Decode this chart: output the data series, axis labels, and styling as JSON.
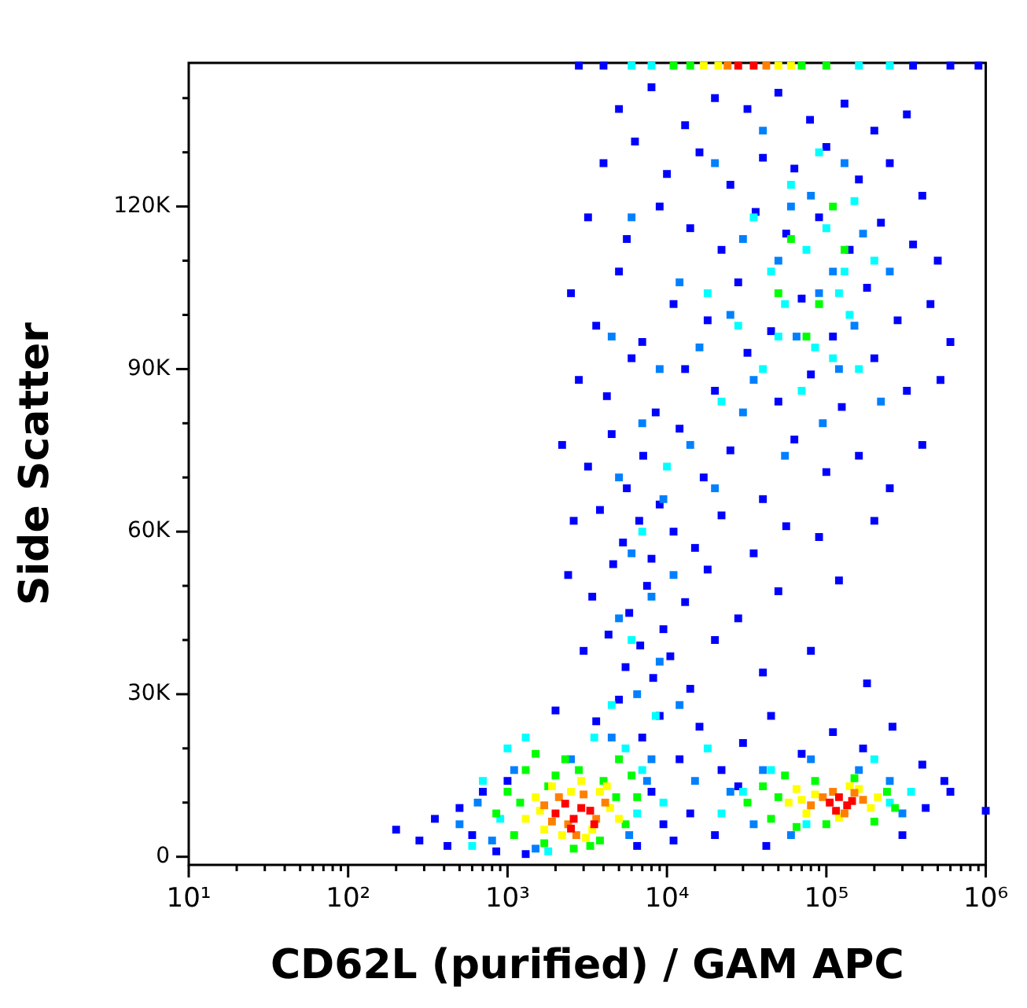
{
  "chart_data": {
    "type": "scatter",
    "xlabel": "CD62L (purified) / GAM APC",
    "ylabel": "Side Scatter",
    "log": "x",
    "grid": false,
    "legend": false,
    "marker": "square",
    "xlim": [
      10,
      1000000
    ],
    "ylim": [
      -1500,
      146500
    ],
    "xticks": [
      {
        "value": 10,
        "label": "10¹"
      },
      {
        "value": 20,
        "label": null
      },
      {
        "value": 30,
        "label": null
      },
      {
        "value": 40,
        "label": null
      },
      {
        "value": 50,
        "label": null
      },
      {
        "value": 60,
        "label": null
      },
      {
        "value": 70,
        "label": null
      },
      {
        "value": 80,
        "label": null
      },
      {
        "value": 90,
        "label": null
      },
      {
        "value": 100,
        "label": "10²"
      },
      {
        "value": 200,
        "label": null
      },
      {
        "value": 300,
        "label": null
      },
      {
        "value": 400,
        "label": null
      },
      {
        "value": 500,
        "label": null
      },
      {
        "value": 600,
        "label": null
      },
      {
        "value": 700,
        "label": null
      },
      {
        "value": 800,
        "label": null
      },
      {
        "value": 900,
        "label": null
      },
      {
        "value": 1000,
        "label": "10³"
      },
      {
        "value": 2000,
        "label": null
      },
      {
        "value": 3000,
        "label": null
      },
      {
        "value": 4000,
        "label": null
      },
      {
        "value": 5000,
        "label": null
      },
      {
        "value": 6000,
        "label": null
      },
      {
        "value": 7000,
        "label": null
      },
      {
        "value": 8000,
        "label": null
      },
      {
        "value": 9000,
        "label": null
      },
      {
        "value": 10000,
        "label": "10⁴"
      },
      {
        "value": 20000,
        "label": null
      },
      {
        "value": 30000,
        "label": null
      },
      {
        "value": 40000,
        "label": null
      },
      {
        "value": 50000,
        "label": null
      },
      {
        "value": 60000,
        "label": null
      },
      {
        "value": 70000,
        "label": null
      },
      {
        "value": 80000,
        "label": null
      },
      {
        "value": 90000,
        "label": null
      },
      {
        "value": 100000,
        "label": "10⁵"
      },
      {
        "value": 200000,
        "label": null
      },
      {
        "value": 300000,
        "label": null
      },
      {
        "value": 400000,
        "label": null
      },
      {
        "value": 500000,
        "label": null
      },
      {
        "value": 600000,
        "label": null
      },
      {
        "value": 700000,
        "label": null
      },
      {
        "value": 800000,
        "label": null
      },
      {
        "value": 900000,
        "label": null
      },
      {
        "value": 1000000,
        "label": "10⁶"
      }
    ],
    "yticks": [
      0,
      {
        "value": 10000,
        "label": null
      },
      {
        "value": 20000,
        "label": null
      },
      {
        "value": 30000,
        "label": "30K"
      },
      {
        "value": 40000,
        "label": null
      },
      {
        "value": 50000,
        "label": null
      },
      {
        "value": 60000,
        "label": "60K"
      },
      {
        "value": 70000,
        "label": null
      },
      {
        "value": 80000,
        "label": null
      },
      {
        "value": 90000,
        "label": "90K"
      },
      {
        "value": 100000,
        "label": null
      },
      {
        "value": 110000,
        "label": null
      },
      {
        "value": 120000,
        "label": "120K"
      },
      {
        "value": 130000,
        "label": null
      },
      {
        "value": 140000,
        "label": null
      }
    ],
    "series": [
      {
        "color": "#0000ff",
        "x": [
          5000,
          8000,
          13000,
          20000,
          32000,
          50000,
          79000,
          130000,
          200000,
          320000,
          4000,
          6300,
          10000,
          16000,
          25000,
          40000,
          63000,
          100000,
          160000,
          250000,
          400000,
          3200,
          5600,
          9000,
          14000,
          22000,
          36000,
          56000,
          90000,
          140000,
          220000,
          350000,
          500000,
          2500,
          3600,
          5000,
          7000,
          11000,
          18000,
          28000,
          45000,
          70000,
          110000,
          180000,
          280000,
          450000,
          600000,
          2800,
          4200,
          6000,
          8500,
          13000,
          20000,
          32000,
          50000,
          80000,
          125000,
          200000,
          320000,
          520000,
          2200,
          3200,
          4500,
          5600,
          7100,
          9000,
          12000,
          17000,
          25000,
          40000,
          63000,
          100000,
          160000,
          250000,
          400000,
          2600,
          3800,
          5300,
          6700,
          8000,
          11000,
          15000,
          22000,
          35000,
          56000,
          90000,
          200000,
          2400,
          3400,
          4600,
          5800,
          7500,
          9500,
          13000,
          18000,
          28000,
          50000,
          120000,
          3000,
          4300,
          5500,
          6800,
          8200,
          10500,
          14000,
          20000,
          40000,
          80000,
          180000,
          2000,
          3600,
          5000,
          7000,
          9000,
          12000,
          16000,
          22000,
          30000,
          45000,
          70000,
          110000,
          170000,
          260000,
          400000,
          550000,
          200,
          280,
          350,
          420,
          500,
          600,
          700,
          850,
          1000,
          1300,
          6500,
          8000,
          9500,
          11000,
          14000,
          20000,
          28000,
          42000,
          300000,
          420000,
          600000,
          1000000,
          2800,
          4000,
          350000,
          600000,
          900000
        ],
        "values": [
          138000,
          142000,
          135000,
          140000,
          138000,
          141000,
          136000,
          139000,
          134000,
          137000,
          128000,
          132000,
          126000,
          130000,
          124000,
          129000,
          127000,
          131000,
          125000,
          128000,
          122000,
          118000,
          114000,
          120000,
          116000,
          112000,
          119000,
          115000,
          118000,
          112000,
          117000,
          113000,
          110000,
          104000,
          98000,
          108000,
          95000,
          102000,
          99000,
          106000,
          97000,
          103000,
          96000,
          105000,
          99000,
          102000,
          95000,
          88000,
          85000,
          92000,
          82000,
          90000,
          86000,
          93000,
          84000,
          89000,
          83000,
          92000,
          86000,
          88000,
          76000,
          72000,
          78000,
          68000,
          74000,
          65000,
          79000,
          70000,
          75000,
          66000,
          77000,
          71000,
          74000,
          68000,
          76000,
          62000,
          64000,
          58000,
          62000,
          55000,
          60000,
          57000,
          63000,
          56000,
          61000,
          59000,
          62000,
          52000,
          48000,
          54000,
          45000,
          50000,
          42000,
          47000,
          53000,
          44000,
          49000,
          51000,
          38000,
          41000,
          35000,
          39000,
          33000,
          37000,
          31000,
          40000,
          34000,
          38000,
          32000,
          27000,
          25000,
          29000,
          22000,
          26000,
          18000,
          24000,
          16000,
          21000,
          26000,
          19000,
          23000,
          20000,
          24000,
          17000,
          14000,
          5000,
          3000,
          7000,
          2000,
          9000,
          4000,
          12000,
          1000,
          14000,
          500,
          2000,
          12000,
          6000,
          3000,
          8000,
          4000,
          13000,
          2000,
          4000,
          9000,
          12000,
          8500,
          146000,
          146000,
          146000,
          146000,
          146000
        ]
      },
      {
        "color": "#0080ff",
        "x": [
          20000,
          40000,
          80000,
          130000,
          6000,
          30000,
          60000,
          110000,
          170000,
          12000,
          25000,
          50000,
          90000,
          150000,
          250000,
          4500,
          9000,
          16000,
          35000,
          65000,
          120000,
          220000,
          7000,
          14000,
          30000,
          55000,
          95000,
          5000,
          9500,
          20000,
          6000,
          8000,
          11000,
          5000,
          9000,
          6500,
          12000,
          4500,
          8000,
          15000,
          25000,
          40000,
          80000,
          160000,
          250000,
          300000,
          35000,
          60000,
          500,
          650,
          800,
          1100,
          1500,
          5800,
          7500,
          2500
        ],
        "values": [
          128000,
          134000,
          122000,
          128000,
          118000,
          114000,
          120000,
          108000,
          115000,
          106000,
          100000,
          110000,
          104000,
          98000,
          108000,
          96000,
          90000,
          94000,
          88000,
          96000,
          90000,
          84000,
          80000,
          76000,
          82000,
          74000,
          80000,
          70000,
          66000,
          68000,
          56000,
          48000,
          52000,
          44000,
          36000,
          30000,
          28000,
          22000,
          18000,
          14000,
          12000,
          16000,
          18000,
          16000,
          14000,
          8000,
          6000,
          4000,
          6000,
          10000,
          3000,
          16000,
          1500,
          4000,
          14000,
          18000
        ]
      },
      {
        "color": "#00ffff",
        "x": [
          35000,
          60000,
          100000,
          150000,
          45000,
          75000,
          120000,
          200000,
          28000,
          55000,
          85000,
          140000,
          40000,
          70000,
          110000,
          18000,
          22000,
          10000,
          7000,
          6000,
          8500,
          5500,
          18000,
          30000,
          45000,
          200000,
          250000,
          22000,
          700,
          900,
          1000,
          1300,
          600,
          6500,
          7000,
          3500,
          1800,
          90000,
          130000,
          50000,
          160000,
          4500,
          9500,
          340000,
          75000,
          6000,
          8000,
          160000,
          250000
        ],
        "values": [
          118000,
          124000,
          116000,
          121000,
          108000,
          112000,
          104000,
          110000,
          98000,
          102000,
          94000,
          100000,
          90000,
          86000,
          92000,
          104000,
          84000,
          72000,
          60000,
          40000,
          26000,
          20000,
          20000,
          12000,
          16000,
          18000,
          10000,
          8000,
          14000,
          7000,
          20000,
          22000,
          2000,
          8000,
          16000,
          22000,
          1000,
          130000,
          108000,
          96000,
          90000,
          28000,
          10000,
          12000,
          6000,
          146000,
          146000,
          146000,
          146000
        ]
      },
      {
        "color": "#00ff00",
        "x": [
          60000,
          90000,
          130000,
          75000,
          110000,
          50000,
          850,
          1000,
          1100,
          1300,
          1500,
          1700,
          2000,
          2300,
          2800,
          3300,
          4000,
          4800,
          5500,
          6000,
          1200,
          1800,
          3800,
          5000,
          6500,
          2600,
          32000,
          40000,
          45000,
          55000,
          65000,
          85000,
          100000,
          150000,
          200000,
          240000,
          270000,
          50000,
          11000,
          14000,
          70000,
          100000
        ],
        "values": [
          114000,
          102000,
          112000,
          96000,
          120000,
          104000,
          8000,
          12000,
          4000,
          16000,
          19000,
          2500,
          15000,
          18000,
          16000,
          2000,
          14000,
          11000,
          6000,
          15000,
          10000,
          13000,
          3000,
          18000,
          11000,
          1500,
          10000,
          13000,
          7000,
          15000,
          5500,
          14000,
          6000,
          14500,
          6500,
          12000,
          9000,
          11000,
          146000,
          146000,
          146000,
          146000
        ]
      },
      {
        "color": "#ffff00",
        "x": [
          1300,
          1500,
          1700,
          1900,
          2200,
          2500,
          2900,
          3400,
          3800,
          4400,
          5000,
          1600,
          3100,
          4200,
          58000,
          65000,
          75000,
          85000,
          120000,
          160000,
          190000,
          210000,
          70000,
          140000,
          17000,
          21000,
          50000,
          60000
        ],
        "values": [
          7000,
          11000,
          5000,
          13000,
          4000,
          12000,
          14000,
          5000,
          12000,
          9000,
          7000,
          8500,
          3500,
          13000,
          10000,
          12500,
          8000,
          11500,
          7200,
          12500,
          9000,
          11000,
          10500,
          13000,
          146000,
          146000,
          146000,
          146000
        ]
      },
      {
        "color": "#ff8000",
        "x": [
          1700,
          2100,
          2400,
          3000,
          3600,
          4100,
          1900,
          2700,
          80000,
          95000,
          110000,
          170000,
          130000,
          150000,
          24000,
          42000
        ],
        "values": [
          9500,
          11000,
          6000,
          11500,
          7000,
          10000,
          6500,
          4000,
          9500,
          11000,
          12000,
          10500,
          8000,
          11800,
          146000,
          146000
        ]
      },
      {
        "color": "#ff0000",
        "x": [
          2000,
          2300,
          2600,
          2900,
          3300,
          2500,
          3500,
          105000,
          120000,
          135000,
          115000,
          145000,
          28000,
          35000
        ],
        "values": [
          8000,
          9800,
          7000,
          9000,
          8500,
          5200,
          6000,
          10000,
          11000,
          9500,
          8500,
          10300,
          146000,
          146000
        ]
      }
    ]
  }
}
